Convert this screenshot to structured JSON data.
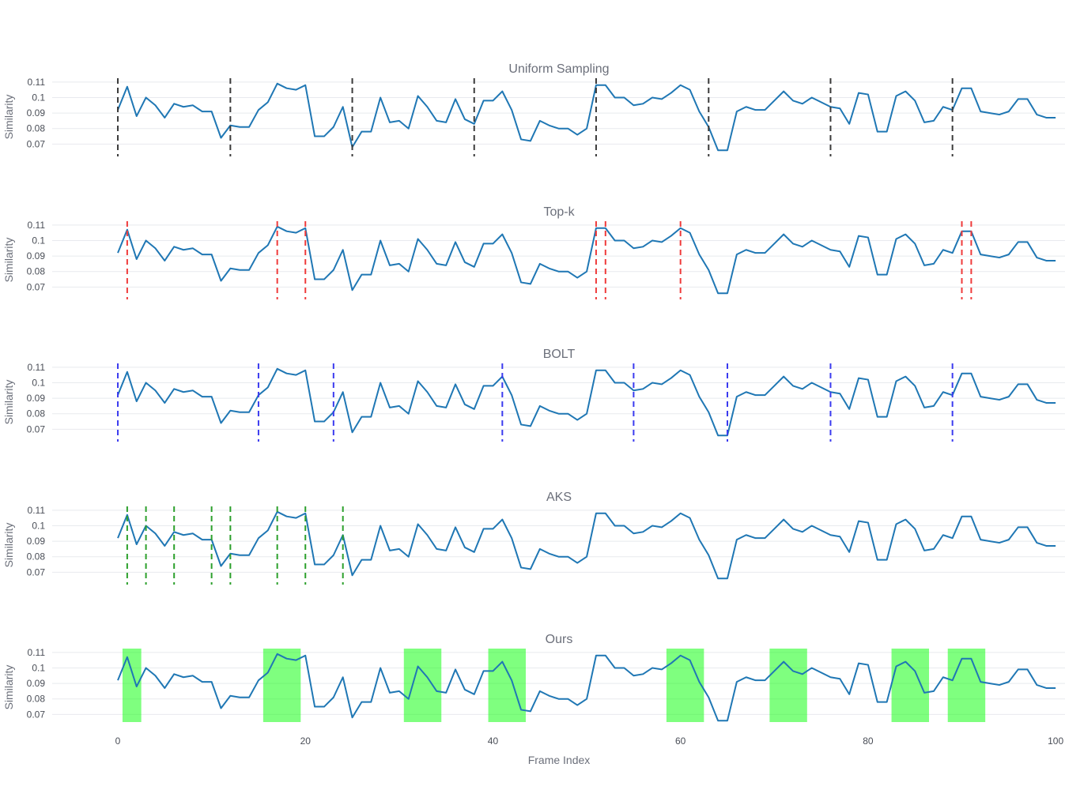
{
  "chart_data": {
    "type": "line",
    "xlabel": "Frame Index",
    "ylabel": "Similarity",
    "xlim": [
      -7,
      101
    ],
    "ylim": [
      0.061,
      0.114
    ],
    "x_ticks": [
      0,
      20,
      40,
      60,
      80,
      100
    ],
    "y_ticks": [
      0.07,
      0.08,
      0.09,
      0.1,
      0.11
    ],
    "y_tick_labels": [
      "0.07",
      "0.08",
      "0.09",
      "0.1",
      "0.11"
    ],
    "grid": true,
    "series_color": "#1f77b4",
    "y": [
      0.092,
      0.107,
      0.088,
      0.1,
      0.095,
      0.087,
      0.096,
      0.094,
      0.095,
      0.091,
      0.091,
      0.074,
      0.082,
      0.081,
      0.081,
      0.092,
      0.097,
      0.109,
      0.106,
      0.105,
      0.108,
      0.075,
      0.075,
      0.081,
      0.094,
      0.068,
      0.078,
      0.078,
      0.1,
      0.084,
      0.085,
      0.08,
      0.101,
      0.094,
      0.085,
      0.084,
      0.099,
      0.086,
      0.083,
      0.098,
      0.098,
      0.104,
      0.092,
      0.073,
      0.072,
      0.085,
      0.082,
      0.08,
      0.08,
      0.076,
      0.08,
      0.108,
      0.108,
      0.1,
      0.1,
      0.095,
      0.096,
      0.1,
      0.099,
      0.103,
      0.108,
      0.105,
      0.091,
      0.081,
      0.066,
      0.066,
      0.091,
      0.094,
      0.092,
      0.092,
      0.098,
      0.104,
      0.098,
      0.096,
      0.1,
      0.097,
      0.094,
      0.093,
      0.083,
      0.103,
      0.102,
      0.078,
      0.078,
      0.101,
      0.104,
      0.098,
      0.084,
      0.085,
      0.094,
      0.092,
      0.106,
      0.106,
      0.091,
      0.09,
      0.089,
      0.091,
      0.099,
      0.099,
      0.089,
      0.087,
      0.087
    ],
    "panels": [
      {
        "title": "Uniform Sampling",
        "marker_color": "#3a3a3a",
        "markers": [
          0,
          12,
          25,
          38,
          51,
          63,
          76,
          89
        ],
        "bands": []
      },
      {
        "title": "Top-k",
        "marker_color": "#ef3b3b",
        "markers": [
          1,
          17,
          20,
          51,
          52,
          60,
          90,
          91
        ],
        "bands": []
      },
      {
        "title": "BOLT",
        "marker_color": "#3b3bef",
        "markers": [
          0,
          15,
          23,
          41,
          55,
          65,
          76,
          89
        ],
        "bands": []
      },
      {
        "title": "AKS",
        "marker_color": "#2ca02c",
        "markers": [
          1,
          3,
          6,
          10,
          12,
          17,
          20,
          24
        ],
        "bands": []
      },
      {
        "title": "Ours",
        "marker_color": "#00ff00",
        "markers": [],
        "bands": [
          [
            0.5,
            2.5
          ],
          [
            15.5,
            19.5
          ],
          [
            30.5,
            34.5
          ],
          [
            39.5,
            43.5
          ],
          [
            58.5,
            62.5
          ],
          [
            69.5,
            73.5
          ],
          [
            82.5,
            86.5
          ],
          [
            88.5,
            92.5
          ]
        ]
      }
    ]
  }
}
